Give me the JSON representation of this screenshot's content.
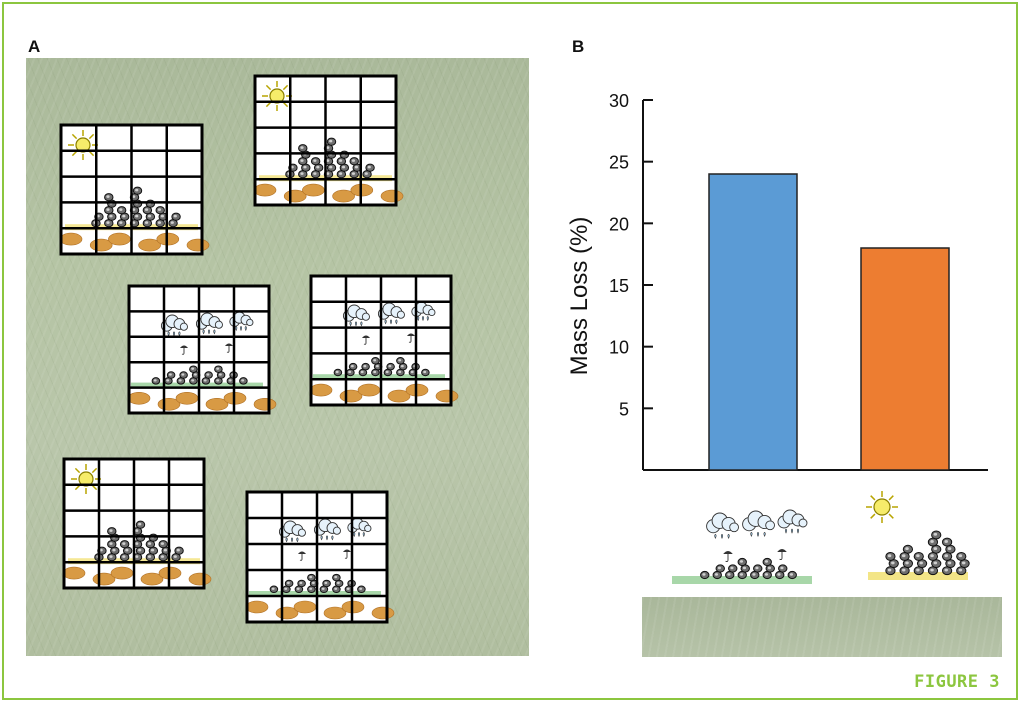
{
  "panels": {
    "a_label": "A",
    "b_label": "B"
  },
  "figure_label": "FIGURE 3",
  "plots": [
    {
      "treatment": "sun"
    },
    {
      "treatment": "sun"
    },
    {
      "treatment": "rain"
    },
    {
      "treatment": "rain"
    },
    {
      "treatment": "sun"
    },
    {
      "treatment": "rain"
    }
  ],
  "colors": {
    "border": "#8cc63f",
    "rain_bar": "#5b9bd5",
    "sun_bar": "#ed7d31"
  },
  "chart_data": {
    "type": "bar",
    "categories": [
      "rain",
      "sun"
    ],
    "values": [
      24,
      18
    ],
    "ylabel": "Mass Loss (%)",
    "yticks": [
      5,
      10,
      15,
      20,
      25,
      30
    ],
    "ylim": [
      0,
      30
    ],
    "grid": false,
    "legend": "none"
  }
}
